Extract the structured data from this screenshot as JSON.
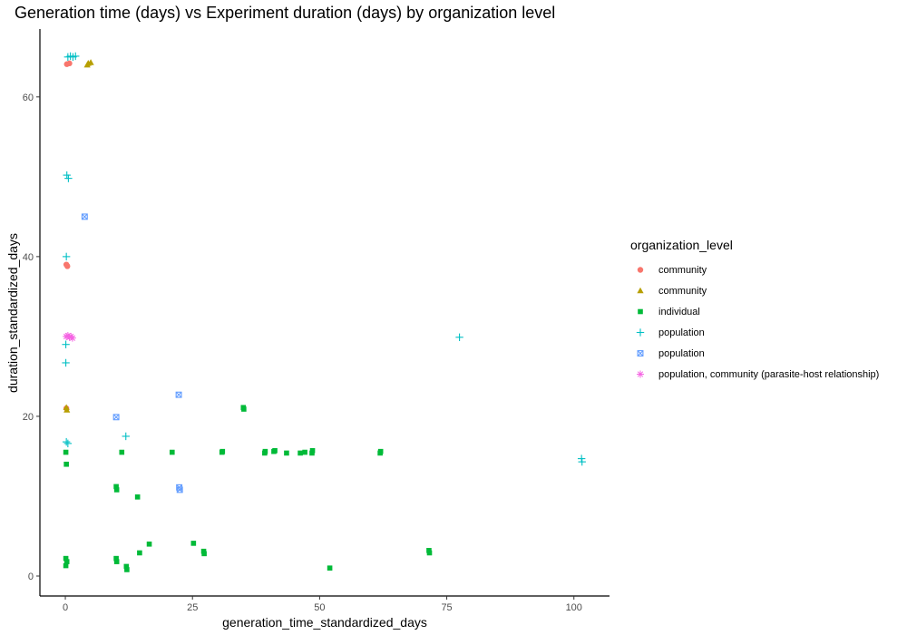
{
  "chart_data": {
    "type": "scatter",
    "title": "Generation time (days) vs Experiment duration (days) by organization level",
    "xlabel": "generation_time_standardized_days",
    "ylabel": "duration_standardized_days",
    "xlim": [
      -5,
      107
    ],
    "ylim": [
      -2.5,
      68.5
    ],
    "x_ticks": [
      0,
      25,
      50,
      75,
      100
    ],
    "y_ticks": [
      0,
      20,
      40,
      60
    ],
    "grid": false,
    "legend_title": "organization_level",
    "legend_position": "right",
    "series": [
      {
        "name": "community",
        "shape": "circle",
        "color": "#f8766d",
        "points": [
          [
            0.3,
            64.1
          ],
          [
            0.8,
            64.2
          ],
          [
            0.2,
            39.0
          ],
          [
            0.4,
            38.8
          ],
          [
            0.2,
            21.0
          ]
        ]
      },
      {
        "name": "community",
        "shape": "triangle",
        "color": "#b79f00",
        "points": [
          [
            4.3,
            64.0
          ],
          [
            5.0,
            64.3
          ],
          [
            4.5,
            64.2
          ],
          [
            0.2,
            21.1
          ],
          [
            0.3,
            20.8
          ]
        ]
      },
      {
        "name": "individual",
        "shape": "square",
        "color": "#00ba38",
        "points": [
          [
            0.1,
            15.5
          ],
          [
            0.2,
            14.0
          ],
          [
            0.1,
            2.2
          ],
          [
            0.3,
            1.8
          ],
          [
            0.1,
            1.3
          ],
          [
            10.0,
            11.2
          ],
          [
            10.1,
            10.8
          ],
          [
            10.0,
            2.2
          ],
          [
            10.1,
            1.8
          ],
          [
            11.1,
            15.5
          ],
          [
            12.0,
            1.2
          ],
          [
            12.1,
            0.8
          ],
          [
            14.2,
            9.9
          ],
          [
            14.6,
            2.9
          ],
          [
            16.5,
            4.0
          ],
          [
            21.0,
            15.5
          ],
          [
            25.2,
            4.1
          ],
          [
            27.2,
            3.1
          ],
          [
            27.3,
            2.8
          ],
          [
            30.8,
            15.5
          ],
          [
            30.9,
            15.6
          ],
          [
            35.0,
            21.1
          ],
          [
            35.1,
            20.9
          ],
          [
            39.2,
            15.4
          ],
          [
            39.3,
            15.6
          ],
          [
            41.0,
            15.6
          ],
          [
            41.2,
            15.7
          ],
          [
            43.5,
            15.4
          ],
          [
            46.2,
            15.4
          ],
          [
            47.1,
            15.5
          ],
          [
            48.5,
            15.4
          ],
          [
            48.6,
            15.7
          ],
          [
            52.0,
            1.0
          ],
          [
            61.9,
            15.4
          ],
          [
            62.0,
            15.6
          ],
          [
            71.5,
            3.2
          ],
          [
            71.6,
            2.9
          ]
        ]
      },
      {
        "name": "population",
        "shape": "plus",
        "color": "#00bfc4",
        "points": [
          [
            0.5,
            65.0
          ],
          [
            1.0,
            65.1
          ],
          [
            1.5,
            65.0
          ],
          [
            2.0,
            65.1
          ],
          [
            0.3,
            50.2
          ],
          [
            0.6,
            49.8
          ],
          [
            0.2,
            40.0
          ],
          [
            0.1,
            29.0
          ],
          [
            0.1,
            26.7
          ],
          [
            0.2,
            16.8
          ],
          [
            0.5,
            16.6
          ],
          [
            11.9,
            17.5
          ],
          [
            77.5,
            29.9
          ],
          [
            101.5,
            14.7
          ],
          [
            101.6,
            14.3
          ]
        ]
      },
      {
        "name": "population",
        "shape": "square-cross",
        "color": "#619cff",
        "points": [
          [
            3.8,
            45.0
          ],
          [
            10.0,
            19.9
          ],
          [
            22.3,
            22.7
          ],
          [
            22.4,
            11.1
          ],
          [
            22.5,
            10.8
          ]
        ]
      },
      {
        "name": "population, community (parasite-host relationship)",
        "shape": "asterisk",
        "color": "#f564e3",
        "points": [
          [
            0.2,
            30.0
          ],
          [
            0.5,
            30.1
          ],
          [
            0.8,
            29.9
          ],
          [
            1.1,
            30.0
          ],
          [
            1.4,
            29.8
          ]
        ]
      }
    ]
  }
}
